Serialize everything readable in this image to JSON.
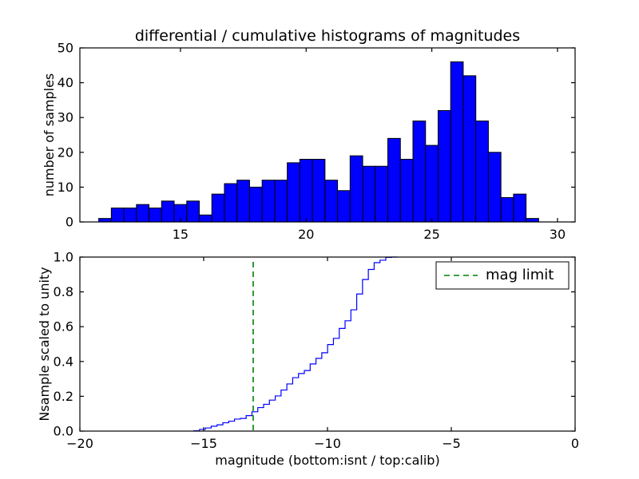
{
  "figure": {
    "background": "#ffffff"
  },
  "chart_data": [
    {
      "type": "bar",
      "name": "differential-histogram-calib",
      "title": "differential / cumulative histograms of magnitudes",
      "xlabel": "",
      "ylabel": "number of samples",
      "xlim": [
        11.0,
        30.7
      ],
      "ylim": [
        0,
        50
      ],
      "grid": false,
      "bar_color": "#0000ff",
      "bar_edge_color": "#000000",
      "bin_start": 11.75,
      "bin_width": 0.5,
      "counts": [
        1,
        4,
        4,
        5,
        4,
        6,
        5,
        6,
        2,
        8,
        11,
        12,
        10,
        12,
        12,
        17,
        18,
        18,
        12,
        9,
        19,
        16,
        16,
        24,
        18,
        29,
        22,
        32,
        46,
        42,
        29,
        20,
        7,
        8,
        1
      ],
      "xticks": [
        {
          "v": 15,
          "label": "15"
        },
        {
          "v": 20,
          "label": "20"
        },
        {
          "v": 25,
          "label": "25"
        },
        {
          "v": 30,
          "label": "30"
        }
      ],
      "yticks": [
        {
          "v": 0,
          "label": "0"
        },
        {
          "v": 10,
          "label": "10"
        },
        {
          "v": 20,
          "label": "20"
        },
        {
          "v": 30,
          "label": "30"
        },
        {
          "v": 40,
          "label": "40"
        },
        {
          "v": 50,
          "label": "50"
        }
      ]
    },
    {
      "type": "line",
      "name": "cumulative-histogram-isnt",
      "style": "step",
      "title": "",
      "xlabel": "magnitude (bottom:isnt / top:calib)",
      "ylabel": "Nsample scaled to unity",
      "xlim": [
        -20,
        0
      ],
      "ylim": [
        0.0,
        1.0
      ],
      "grid": false,
      "line_color": "#0000ff",
      "step_start": -15.4,
      "step_width": 0.235,
      "cumulative_fraction": [
        0.002,
        0.01,
        0.018,
        0.028,
        0.036,
        0.048,
        0.057,
        0.069,
        0.073,
        0.089,
        0.111,
        0.135,
        0.154,
        0.178,
        0.202,
        0.236,
        0.271,
        0.307,
        0.331,
        0.348,
        0.386,
        0.418,
        0.45,
        0.497,
        0.533,
        0.59,
        0.634,
        0.697,
        0.788,
        0.871,
        0.929,
        0.968,
        0.982,
        0.998,
        1.0
      ],
      "vline": {
        "x": -13,
        "color": "#008000",
        "linestyle": "dashed",
        "label": "mag limit"
      },
      "legend": {
        "location": "upper right",
        "entries": [
          {
            "label": "mag limit",
            "color": "#008000",
            "linestyle": "dashed"
          }
        ]
      },
      "xticks": [
        {
          "v": -20,
          "label": "−20"
        },
        {
          "v": -15,
          "label": "−15"
        },
        {
          "v": -10,
          "label": "−10"
        },
        {
          "v": -5,
          "label": "−5"
        },
        {
          "v": 0,
          "label": "0"
        }
      ],
      "yticks": [
        {
          "v": 0,
          "label": "0.0"
        },
        {
          "v": 0.2,
          "label": "0.2"
        },
        {
          "v": 0.4,
          "label": "0.4"
        },
        {
          "v": 0.6,
          "label": "0.6"
        },
        {
          "v": 0.8,
          "label": "0.8"
        },
        {
          "v": 1.0,
          "label": "1.0"
        }
      ]
    }
  ]
}
